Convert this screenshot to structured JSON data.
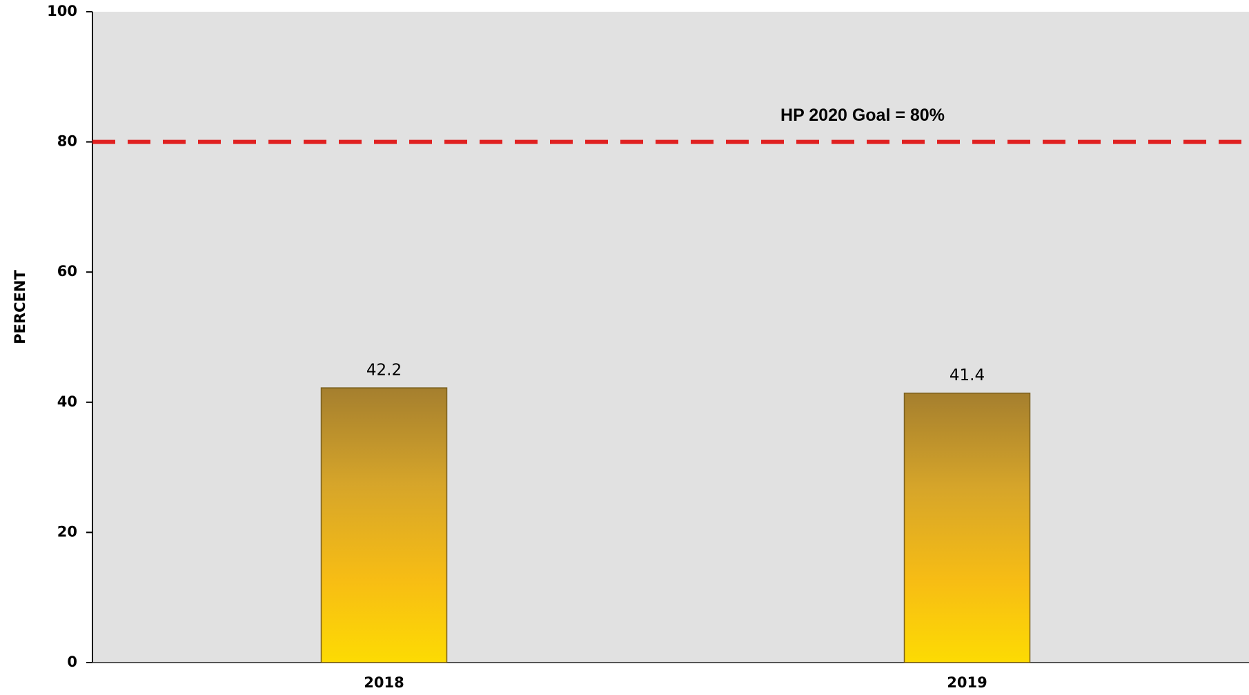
{
  "chart_data": {
    "type": "bar",
    "y_label": "PERCENT",
    "categories": [
      "2018",
      "2019"
    ],
    "values": [
      42.2,
      41.4
    ],
    "color": "#f5c518",
    "ylim": [
      0,
      100
    ],
    "yticks": [
      0,
      20,
      40,
      60,
      80,
      100
    ],
    "reference_line": {
      "value": 80,
      "label": "HP 2020 Goal = 80%",
      "color": "#e02020"
    }
  }
}
